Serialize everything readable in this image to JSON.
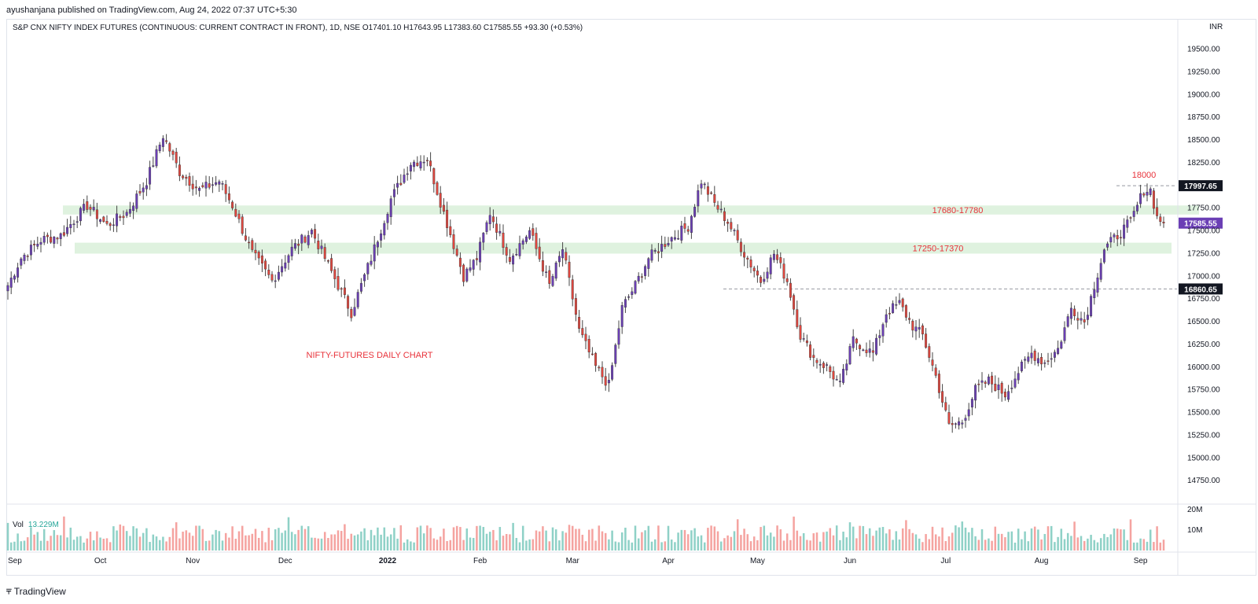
{
  "publisher_line": "ayushanjana published on TradingView.com, Aug 24, 2022 07:37 UTC+5:30",
  "legend": "S&P CNX NIFTY INDEX FUTURES (CONTINUOUS: CURRENT CONTRACT IN FRONT), 1D, NSE  O17401.10  H17643.95  L17383.60  C17585.55  +93.30 (+0.53%)",
  "volume": {
    "label": "Vol",
    "value": "13.229M"
  },
  "footer": {
    "logo_icon": "tradingview-logo-icon",
    "brand": "TradingView"
  },
  "colors": {
    "up": "#6b3fb5",
    "down": "#e0473f",
    "wick": "#444444",
    "vol_up": "#8fd1c7",
    "vol_down": "#f5a3a0",
    "zone": "#dff2df",
    "annotation": "#e8323a",
    "badge_dark": "#131722",
    "badge_last": "#6b3fb5"
  },
  "chart_data": {
    "type": "candlestick",
    "unit": "INR",
    "ylim": [
      14500,
      19800
    ],
    "y_ticks": [
      14750,
      15000,
      15250,
      15500,
      15750,
      16000,
      16250,
      16500,
      16750,
      17000,
      17250,
      17500,
      17750,
      18000,
      18250,
      18500,
      18750,
      19000,
      19250,
      19500
    ],
    "y_tick_labels": [
      "14750.00",
      "15000.00",
      "15250.00",
      "15500.00",
      "15750.00",
      "16000.00",
      "16250.00",
      "16500.00",
      "16750.00",
      "17000.00",
      "17250.00",
      "17500.00",
      "17750.00",
      "18000.00",
      "18250.00",
      "18500.00",
      "18750.00",
      "19000.00",
      "19250.00",
      "19500.00"
    ],
    "x_labels": [
      "Sep",
      "Oct",
      "Nov",
      "Dec",
      "2022",
      "Feb",
      "Mar",
      "Apr",
      "May",
      "Jun",
      "Jul",
      "Aug",
      "Sep"
    ],
    "volume_ticks": [
      "20M",
      "10M"
    ],
    "zones": [
      {
        "label": "17680-17780",
        "low": 17680,
        "high": 17780
      },
      {
        "label": "17250-17370",
        "low": 17250,
        "high": 17370
      }
    ],
    "levels": [
      {
        "value": 17997.65,
        "label": "17997.65",
        "annotation": "18000"
      },
      {
        "value": 16860.65,
        "label": "16860.65"
      }
    ],
    "last_price": {
      "value": 17585.55,
      "label": "17585.55"
    },
    "annotation": "NIFTY-FUTURES DAILY CHART",
    "anchors": [
      [
        0,
        16900
      ],
      [
        4,
        17200
      ],
      [
        10,
        17400
      ],
      [
        16,
        17450
      ],
      [
        24,
        17780
      ],
      [
        30,
        17560
      ],
      [
        36,
        17700
      ],
      [
        42,
        18050
      ],
      [
        47,
        18550
      ],
      [
        52,
        18150
      ],
      [
        58,
        17950
      ],
      [
        64,
        18050
      ],
      [
        68,
        17780
      ],
      [
        74,
        17250
      ],
      [
        80,
        16950
      ],
      [
        86,
        17300
      ],
      [
        92,
        17500
      ],
      [
        98,
        17050
      ],
      [
        104,
        16600
      ],
      [
        110,
        17200
      ],
      [
        116,
        17850
      ],
      [
        122,
        18250
      ],
      [
        127,
        18300
      ],
      [
        132,
        17700
      ],
      [
        138,
        17000
      ],
      [
        142,
        17200
      ],
      [
        146,
        17700
      ],
      [
        152,
        17200
      ],
      [
        158,
        17500
      ],
      [
        164,
        16900
      ],
      [
        168,
        17300
      ],
      [
        173,
        16400
      ],
      [
        178,
        16000
      ],
      [
        182,
        15800
      ],
      [
        186,
        16650
      ],
      [
        190,
        16900
      ],
      [
        194,
        17200
      ],
      [
        200,
        17400
      ],
      [
        206,
        17550
      ],
      [
        210,
        18050
      ],
      [
        214,
        17800
      ],
      [
        218,
        17600
      ],
      [
        223,
        17250
      ],
      [
        228,
        16950
      ],
      [
        232,
        17250
      ],
      [
        236,
        16950
      ],
      [
        240,
        16350
      ],
      [
        244,
        16100
      ],
      [
        248,
        16000
      ],
      [
        252,
        15800
      ],
      [
        256,
        16300
      ],
      [
        262,
        16150
      ],
      [
        266,
        16600
      ],
      [
        270,
        16700
      ],
      [
        274,
        16450
      ],
      [
        277,
        16350
      ],
      [
        281,
        15900
      ],
      [
        285,
        15350
      ],
      [
        289,
        15400
      ],
      [
        293,
        15750
      ],
      [
        297,
        15850
      ],
      [
        302,
        15700
      ],
      [
        306,
        15950
      ],
      [
        310,
        16150
      ],
      [
        314,
        16050
      ],
      [
        318,
        16200
      ],
      [
        322,
        16650
      ],
      [
        326,
        16500
      ],
      [
        329,
        16900
      ],
      [
        332,
        17300
      ],
      [
        336,
        17450
      ],
      [
        340,
        17600
      ],
      [
        344,
        17950
      ],
      [
        346,
        17950
      ],
      [
        348,
        17650
      ],
      [
        350,
        17585
      ]
    ],
    "total_bars": 351,
    "x_label_bars": [
      0,
      28,
      56,
      84,
      115,
      143,
      171,
      200,
      227,
      255,
      284,
      313,
      343
    ]
  }
}
